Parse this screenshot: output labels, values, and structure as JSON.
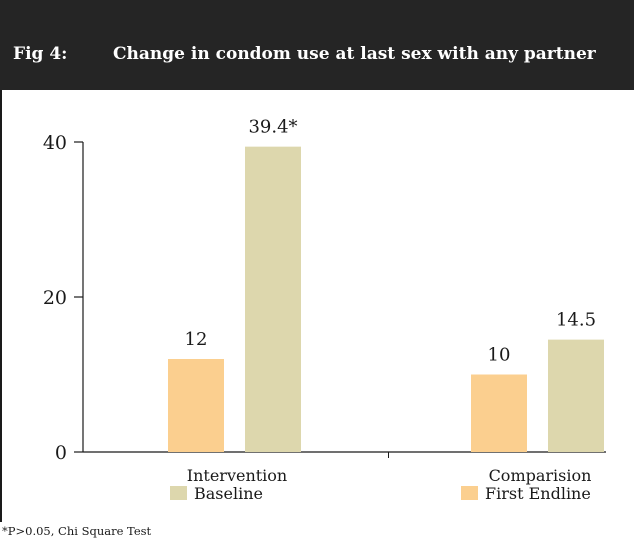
{
  "header": {
    "fig_label": "Fig 4:",
    "title": "Change in condom use at last sex with any partner"
  },
  "footnote": "*P>0.05, Chi Square Test",
  "colors": {
    "header_bg": "#252525",
    "baseline": "#ddd7ad",
    "first_endline": "#fbcf8f"
  },
  "chart_data": {
    "type": "bar",
    "title": "Change in condom use at last sex with any partner",
    "categories": [
      "Intervention",
      "Comparision"
    ],
    "series": [
      {
        "name": "First Endline",
        "values": [
          12,
          10
        ],
        "labels": [
          "12",
          "10"
        ],
        "color": "#fbcf8f"
      },
      {
        "name": "Baseline",
        "values": [
          39.4,
          14.5
        ],
        "labels": [
          "39.4*",
          "14.5"
        ],
        "color": "#ddd7ad"
      }
    ],
    "legend_order": [
      "Baseline",
      "First Endline"
    ],
    "ylim": [
      0,
      40
    ],
    "yticks": [
      0,
      20,
      40
    ],
    "xlabel": "",
    "ylabel": "",
    "grid": false,
    "legend_placement": "bottom, under each category label"
  }
}
